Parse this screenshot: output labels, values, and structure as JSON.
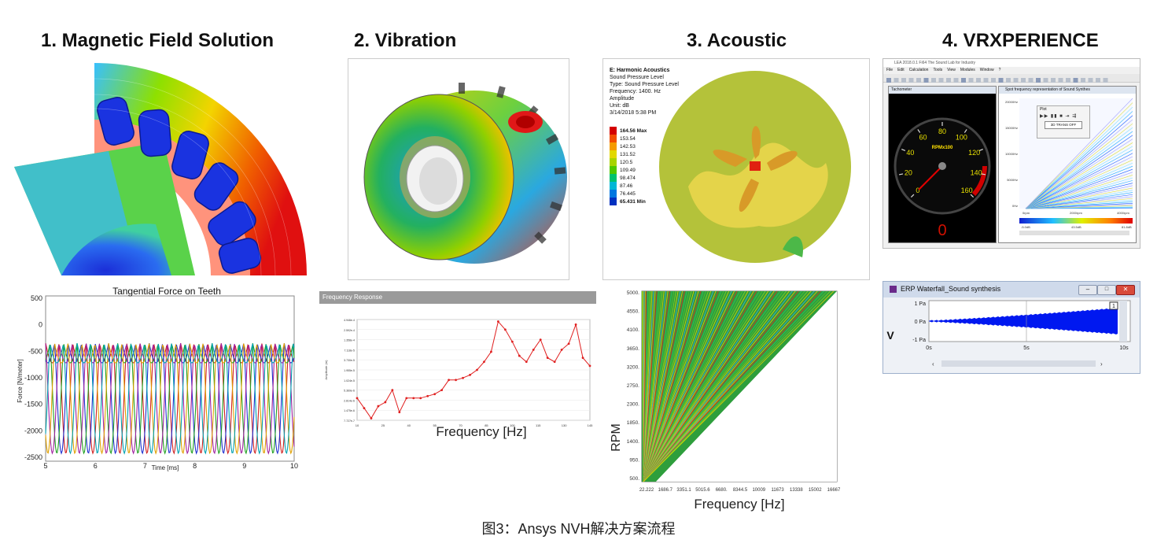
{
  "titles": {
    "step1": "1. Magnetic Field Solution",
    "step2": "2. Vibration",
    "step3": "3. Acoustic",
    "step4": "4. VRXPERIENCE"
  },
  "caption": "图3：Ansys NVH解决方案流程",
  "force_chart": {
    "title": "Tangential Force on Teeth",
    "ylabel": "Force [N/meter]",
    "xlabel": "Time [ms]",
    "yticks": [
      "500",
      "0",
      "-500",
      "-1000",
      "-1500",
      "-2000",
      "-2500"
    ],
    "xticks": [
      "5",
      "6",
      "7",
      "8",
      "9",
      "10"
    ]
  },
  "freq_response": {
    "window_title": "Frequency Response",
    "xlabel": "Frequency [Hz]",
    "ylabel": "Amplitude (m)",
    "yticks": [
      "4.946e-4",
      "2.592e-4",
      "1.358e-4",
      "7.118e-5",
      "3.730e-5",
      "1.955e-5",
      "1.024e-5",
      "5.369e-6",
      "2.814e-6",
      "1.475e-6",
      "7.727e-7"
    ],
    "xticks": [
      "10",
      "25",
      "40",
      "55",
      "70",
      "85",
      "100",
      "115",
      "130",
      "145"
    ]
  },
  "acoustic": {
    "legend_title": "E: Harmonic Acoustics",
    "info": [
      "Sound Pressure Level",
      "Type: Sound Pressure Level",
      "Frequency: 1400. Hz",
      "Amplitude",
      "Unit: dB",
      "3/14/2018 5:38 PM"
    ],
    "legend": [
      {
        "label": "164.56 Max",
        "color": "#d40000"
      },
      {
        "label": "153.54",
        "color": "#f24d00"
      },
      {
        "label": "142.53",
        "color": "#f59b00"
      },
      {
        "label": "131.52",
        "color": "#e2d800"
      },
      {
        "label": "120.5",
        "color": "#a8d400"
      },
      {
        "label": "109.49",
        "color": "#4fc800"
      },
      {
        "label": "98.474",
        "color": "#00c26f"
      },
      {
        "label": "87.46",
        "color": "#00b7d6"
      },
      {
        "label": "76.445",
        "color": "#0077e0"
      },
      {
        "label": "65.431 Min",
        "color": "#0030c0"
      }
    ]
  },
  "campbell": {
    "ylabel": "RPM",
    "xlabel": "Frequency [Hz]",
    "yticks": [
      "5000.",
      "4550.",
      "4100.",
      "3650.",
      "3200.",
      "2750.",
      "2300.",
      "1850.",
      "1400.",
      "950.",
      "500."
    ],
    "xticks": [
      "22.222",
      "1686.7",
      "3351.1",
      "5015.6",
      "6680.",
      "8344.5",
      "10009",
      "11673",
      "13338",
      "15002",
      "16667"
    ]
  },
  "vrx": {
    "app_title": "LEA 2018.0.1 Fi64 The Sound Lab for Industry",
    "menu": [
      "File",
      "Edit",
      "Calculation",
      "Tools",
      "View",
      "Modules",
      "Window",
      "?"
    ],
    "tachometer_title": "Tachometer",
    "gauge_ticks": [
      "0",
      "20",
      "40",
      "60",
      "80",
      "100",
      "120",
      "140",
      "160"
    ],
    "gauge_label": "RPMx100",
    "digital_readout": "0",
    "spectro_title": "Spot frequency representation of Sound Synthes",
    "spectro_yticks": [
      "20000Hz",
      "15000Hz",
      "10000Hz",
      "5000Hz",
      "0Hz"
    ],
    "spectro_xticks": [
      "0rpm",
      "2000rpm",
      "4000rpm"
    ],
    "colorbar_ticks": [
      "-5.0dB",
      "43.5dB",
      "81.8dB"
    ],
    "plot_popup": "Plot",
    "popup_button": "3D TRANS OFF"
  },
  "erp": {
    "title": "ERP Waterfall_Sound synthesis",
    "yticks": [
      "1 Pa",
      "0 Pa",
      "-1 Pa"
    ],
    "xticks": [
      "0s",
      "5s",
      "10s"
    ],
    "badge": "1",
    "side_label": "V"
  }
}
